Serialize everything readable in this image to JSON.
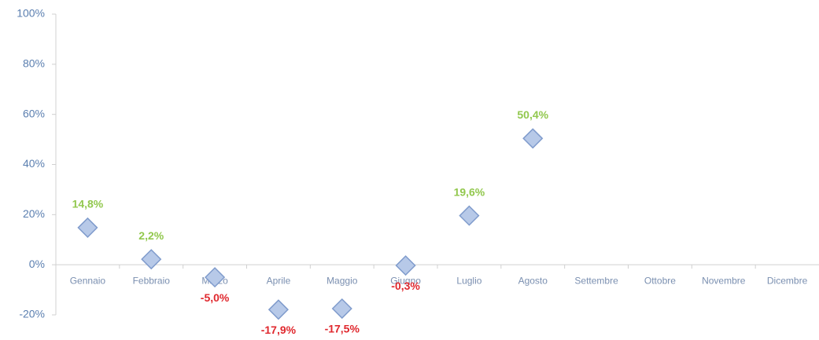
{
  "chart_data": {
    "type": "scatter",
    "categories": [
      "Gennaio",
      "Febbraio",
      "Marzo",
      "Aprile",
      "Maggio",
      "Giugno",
      "Luglio",
      "Agosto",
      "Settembre",
      "Ottobre",
      "Novembre",
      "Dicembre"
    ],
    "series": [
      {
        "color": "#b7c9e8",
        "values": [
          14.8,
          2.2,
          -5.0,
          -17.9,
          -17.5,
          -0.3,
          19.6,
          50.4,
          null,
          null,
          null,
          null
        ],
        "value_labels": [
          "14,8%",
          "2,2%",
          "-5,0%",
          "-17,9%",
          "-17,5%",
          "-0,3%",
          "19,6%",
          "50,4%",
          null,
          null,
          null,
          null
        ]
      }
    ],
    "positive_label_color": "#92c84e",
    "negative_label_color": "#e0282e",
    "ylim": [
      -20,
      100
    ],
    "yticks": [
      {
        "value": -20,
        "label": "-20%"
      },
      {
        "value": 0,
        "label": "0%"
      },
      {
        "value": 20,
        "label": "20%"
      },
      {
        "value": 40,
        "label": "40%"
      },
      {
        "value": 60,
        "label": "60%"
      },
      {
        "value": 80,
        "label": "80%"
      },
      {
        "value": 100,
        "label": "100%"
      }
    ],
    "grid": false
  }
}
